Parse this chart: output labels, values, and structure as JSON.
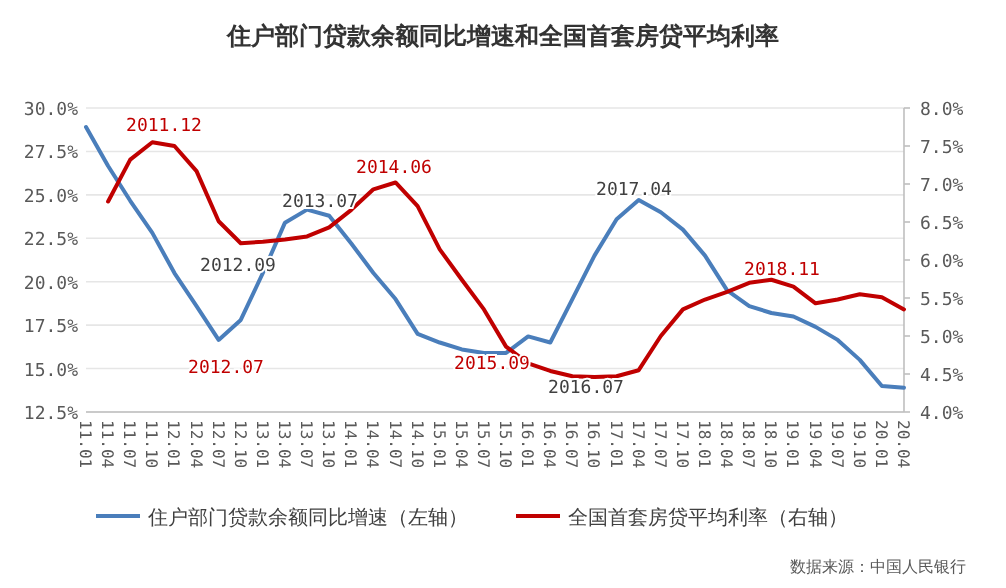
{
  "chart_data": {
    "type": "line",
    "title": "住户部门贷款余额同比增速和全国首套房贷平均利率",
    "categories": [
      "11.01",
      "11.04",
      "11.07",
      "11.10",
      "12.01",
      "12.04",
      "12.07",
      "12.10",
      "13.01",
      "13.04",
      "13.07",
      "13.10",
      "14.01",
      "14.04",
      "14.07",
      "14.10",
      "15.01",
      "15.04",
      "15.07",
      "15.10",
      "16.01",
      "16.04",
      "16.07",
      "16.10",
      "17.01",
      "17.04",
      "17.07",
      "17.10",
      "18.01",
      "18.04",
      "18.07",
      "18.10",
      "19.01",
      "19.04",
      "19.07",
      "19.10",
      "20.01",
      "20.04"
    ],
    "series": [
      {
        "name": "住户部门贷款余额同比增速（左轴）",
        "color": "#4a7ebb",
        "values": [
          28.9,
          26.66,
          24.66,
          22.81,
          20.5,
          18.6,
          16.65,
          17.8,
          20.5,
          23.4,
          24.15,
          23.8,
          22.2,
          20.5,
          19.0,
          17.0,
          16.5,
          16.1,
          15.9,
          15.9,
          16.85,
          16.5,
          19.0,
          21.5,
          23.6,
          24.7,
          24.0,
          23.0,
          21.5,
          19.5,
          18.6,
          18.2,
          18.0,
          17.4,
          16.65,
          15.5,
          14.0,
          13.9
        ]
      },
      {
        "name": "全国首套房贷平均利率（右轴）",
        "color": "#c00000",
        "axis": "y2",
        "values": [
          null,
          6.77,
          7.32,
          7.55,
          7.5,
          7.17,
          6.51,
          6.22,
          6.24,
          6.27,
          6.31,
          6.43,
          6.66,
          6.93,
          7.02,
          6.71,
          6.14,
          5.74,
          5.35,
          4.86,
          4.64,
          4.54,
          4.47,
          4.46,
          4.47,
          4.55,
          5.0,
          5.35,
          5.48,
          5.58,
          5.7,
          5.74,
          5.65,
          5.43,
          5.48,
          5.55,
          5.51,
          5.35
        ]
      }
    ],
    "ylim": [
      12.5,
      30
    ],
    "yticks": [
      {
        "value": 12.5,
        "label": "12.5%"
      },
      {
        "value": 15,
        "label": "15.0%"
      },
      {
        "value": 17.5,
        "label": "17.5%"
      },
      {
        "value": 20,
        "label": "20.0%"
      },
      {
        "value": 22.5,
        "label": "22.5%"
      },
      {
        "value": 25,
        "label": "25.0%"
      },
      {
        "value": 27.5,
        "label": "27.5%"
      },
      {
        "value": 30,
        "label": "30.0%"
      }
    ],
    "y2lim": [
      4,
      8
    ],
    "y2ticks": [
      {
        "value": 4,
        "label": "4.0%"
      },
      {
        "value": 4.5,
        "label": "4.5%"
      },
      {
        "value": 5,
        "label": "5.0%"
      },
      {
        "value": 5.5,
        "label": "5.5%"
      },
      {
        "value": 6,
        "label": "6.0%"
      },
      {
        "value": 6.5,
        "label": "6.5%"
      },
      {
        "value": 7,
        "label": "7.0%"
      },
      {
        "value": 7.5,
        "label": "7.5%"
      },
      {
        "value": 8,
        "label": "8.0%"
      }
    ],
    "grid": "y",
    "legend": "bottom",
    "annotations": [
      "2011.12",
      "2012.09",
      "2012.07",
      "2013.07",
      "2014.06",
      "2015.09",
      "2016.07",
      "2017.04",
      "2018.11",
      "数据来源：中国人民银行"
    ]
  }
}
